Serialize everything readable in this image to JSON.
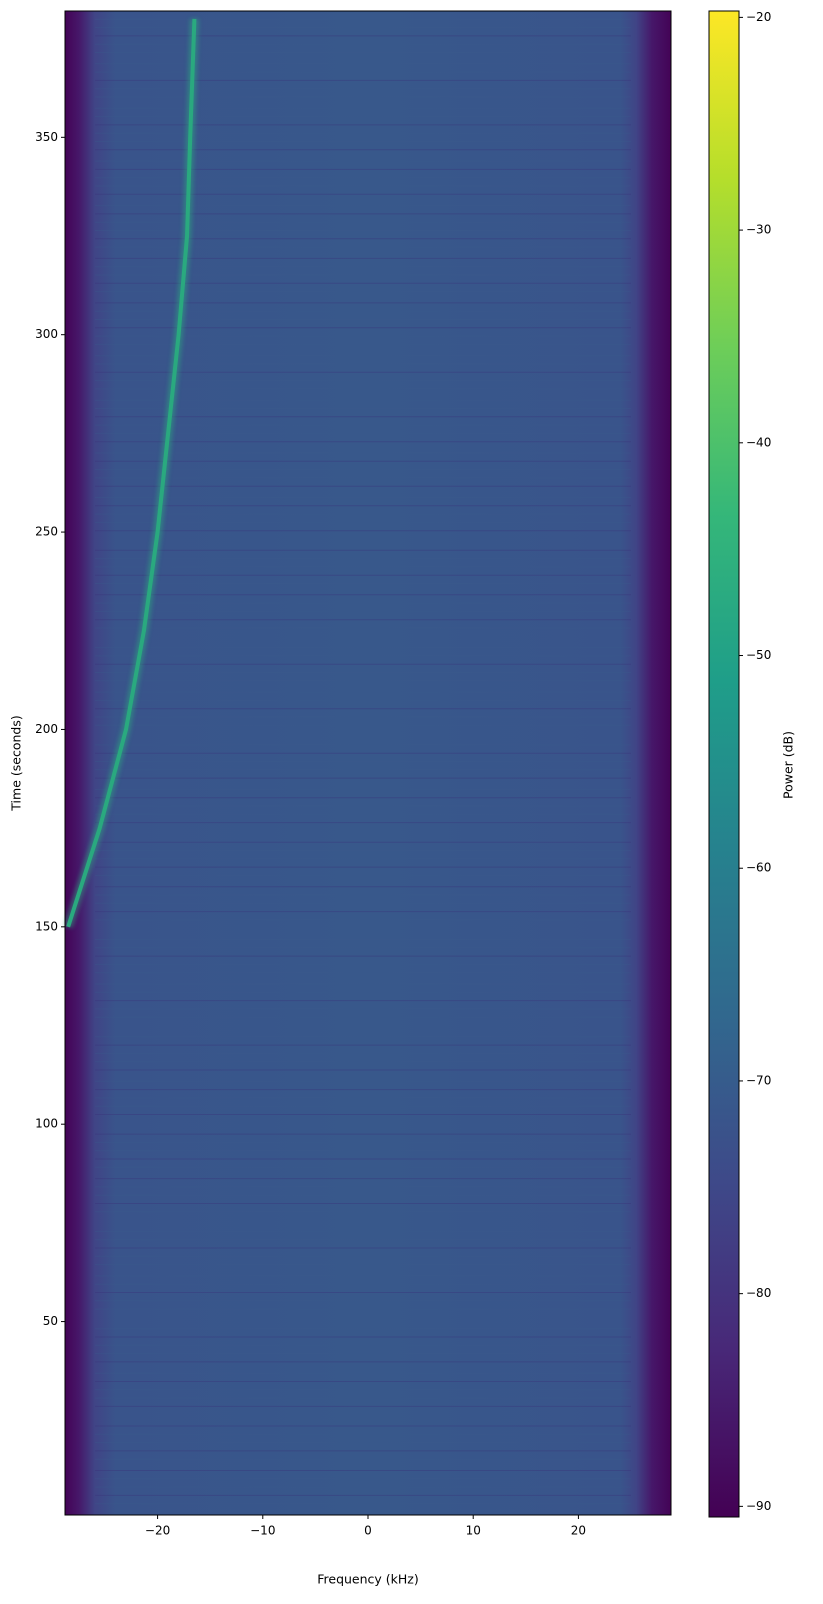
{
  "chart_data": {
    "type": "spectrogram",
    "x_label": "Frequency (kHz)",
    "y_label": "Time (seconds)",
    "xlim": [
      -28.8,
      28.8
    ],
    "xticks": [
      {
        "value": -20,
        "label": "−20"
      },
      {
        "value": -10,
        "label": "−10"
      },
      0,
      10,
      20
    ],
    "ylim": [
      1,
      382
    ],
    "yticks": [
      50,
      100,
      150,
      200,
      250,
      300,
      350
    ],
    "floor": {
      "x": [
        -28.8,
        -27.5,
        -26,
        -24,
        0,
        24,
        25.5,
        27,
        28.8
      ],
      "values": [
        -90,
        -86,
        -76,
        -72,
        -71,
        -72,
        -76,
        -86,
        -90
      ]
    },
    "trace": {
      "x": [
        -28.5,
        -25.5,
        -23,
        -21.3,
        -20,
        -19,
        -18,
        -17.2,
        -16.9,
        -16.5
      ],
      "y": [
        150,
        175,
        200,
        225,
        250,
        275,
        300,
        325,
        350,
        380
      ],
      "color": "#2aa97f"
    },
    "colorbar": {
      "label": "Power (dB)",
      "lim": [
        -90.5,
        -19.7
      ],
      "ticks": [
        {
          "value": -90,
          "label": "−90"
        },
        {
          "value": -80,
          "label": "−80"
        },
        {
          "value": -70,
          "label": "−70"
        },
        {
          "value": -60,
          "label": "−60"
        },
        {
          "value": -50,
          "label": "−50"
        },
        {
          "value": -40,
          "label": "−40"
        },
        {
          "value": -30,
          "label": "−30"
        },
        {
          "value": -20,
          "label": "−20"
        }
      ],
      "colormap": [
        "#440154",
        "#482878",
        "#3e4989",
        "#31688e",
        "#26828e",
        "#1f9e89",
        "#35b779",
        "#6ece58",
        "#b5de2b",
        "#fde725"
      ]
    }
  }
}
